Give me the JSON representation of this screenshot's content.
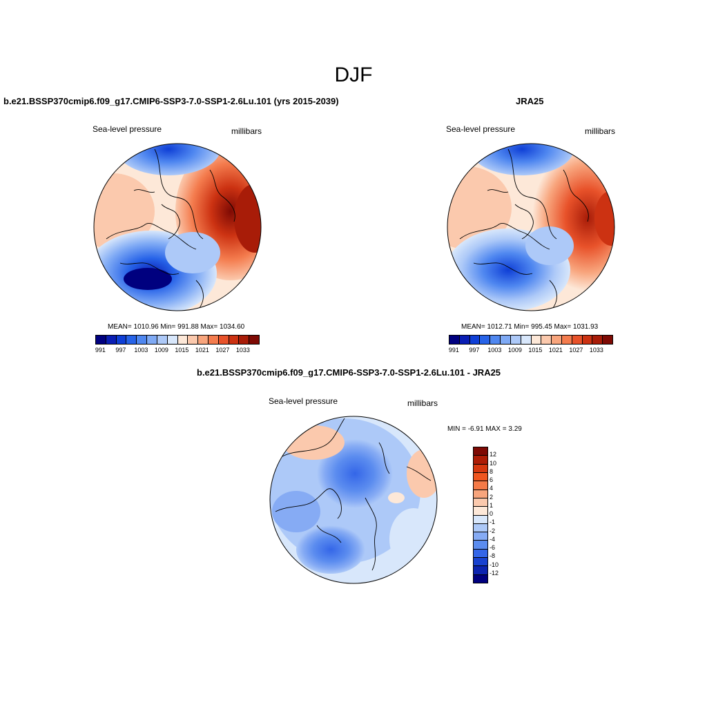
{
  "figure": {
    "season": "DJF"
  },
  "panels": [
    {
      "title": "b.e21.BSSP370cmip6.f09_g17.CMIP6-SSP3-7.0-SSP1-2.6Lu.101 (yrs 2015-2039)",
      "variable": "Sea-level pressure",
      "units": "millibars",
      "stats": "MEAN= 1010.96  Min= 991.88  Max= 1034.60"
    },
    {
      "title": "JRA25",
      "variable": "Sea-level pressure",
      "units": "millibars",
      "stats": "MEAN= 1012.71  Min= 995.45  Max= 1031.93"
    },
    {
      "title": "b.e21.BSSP370cmip6.f09_g17.CMIP6-SSP3-7.0-SSP1-2.6Lu.101 - JRA25",
      "variable": "Sea-level pressure",
      "units": "millibars",
      "stats": "MIN =  -6.91 MAX =   3.29"
    }
  ],
  "colorbar_main": {
    "colors": [
      "#00007f",
      "#0a1eb4",
      "#0f3fd6",
      "#2763e8",
      "#4f87f0",
      "#7faaf5",
      "#adc9f8",
      "#d8e7fb",
      "#fde8d8",
      "#fbc9ad",
      "#f8a57d",
      "#f47c4e",
      "#e8522a",
      "#cc3212",
      "#a81c08",
      "#7e0a04"
    ],
    "labels": [
      "991",
      "997",
      "1003",
      "1009",
      "1015",
      "1021",
      "1027",
      "1033"
    ]
  },
  "colorbar_diff": {
    "colors": [
      "#7e0a04",
      "#ad1d06",
      "#d6380f",
      "#f0561f",
      "#f57a47",
      "#f8a57d",
      "#fbc9ad",
      "#fde8d8",
      "#d8e7fb",
      "#adc9f8",
      "#86abf4",
      "#5b8cef",
      "#3466e8",
      "#1842d0",
      "#0c24b0",
      "#00007f"
    ],
    "labels": [
      "12",
      "10",
      "8",
      "6",
      "4",
      "2",
      "1",
      "0",
      "-1",
      "-2",
      "-4",
      "-6",
      "-8",
      "-10",
      "-12"
    ]
  }
}
